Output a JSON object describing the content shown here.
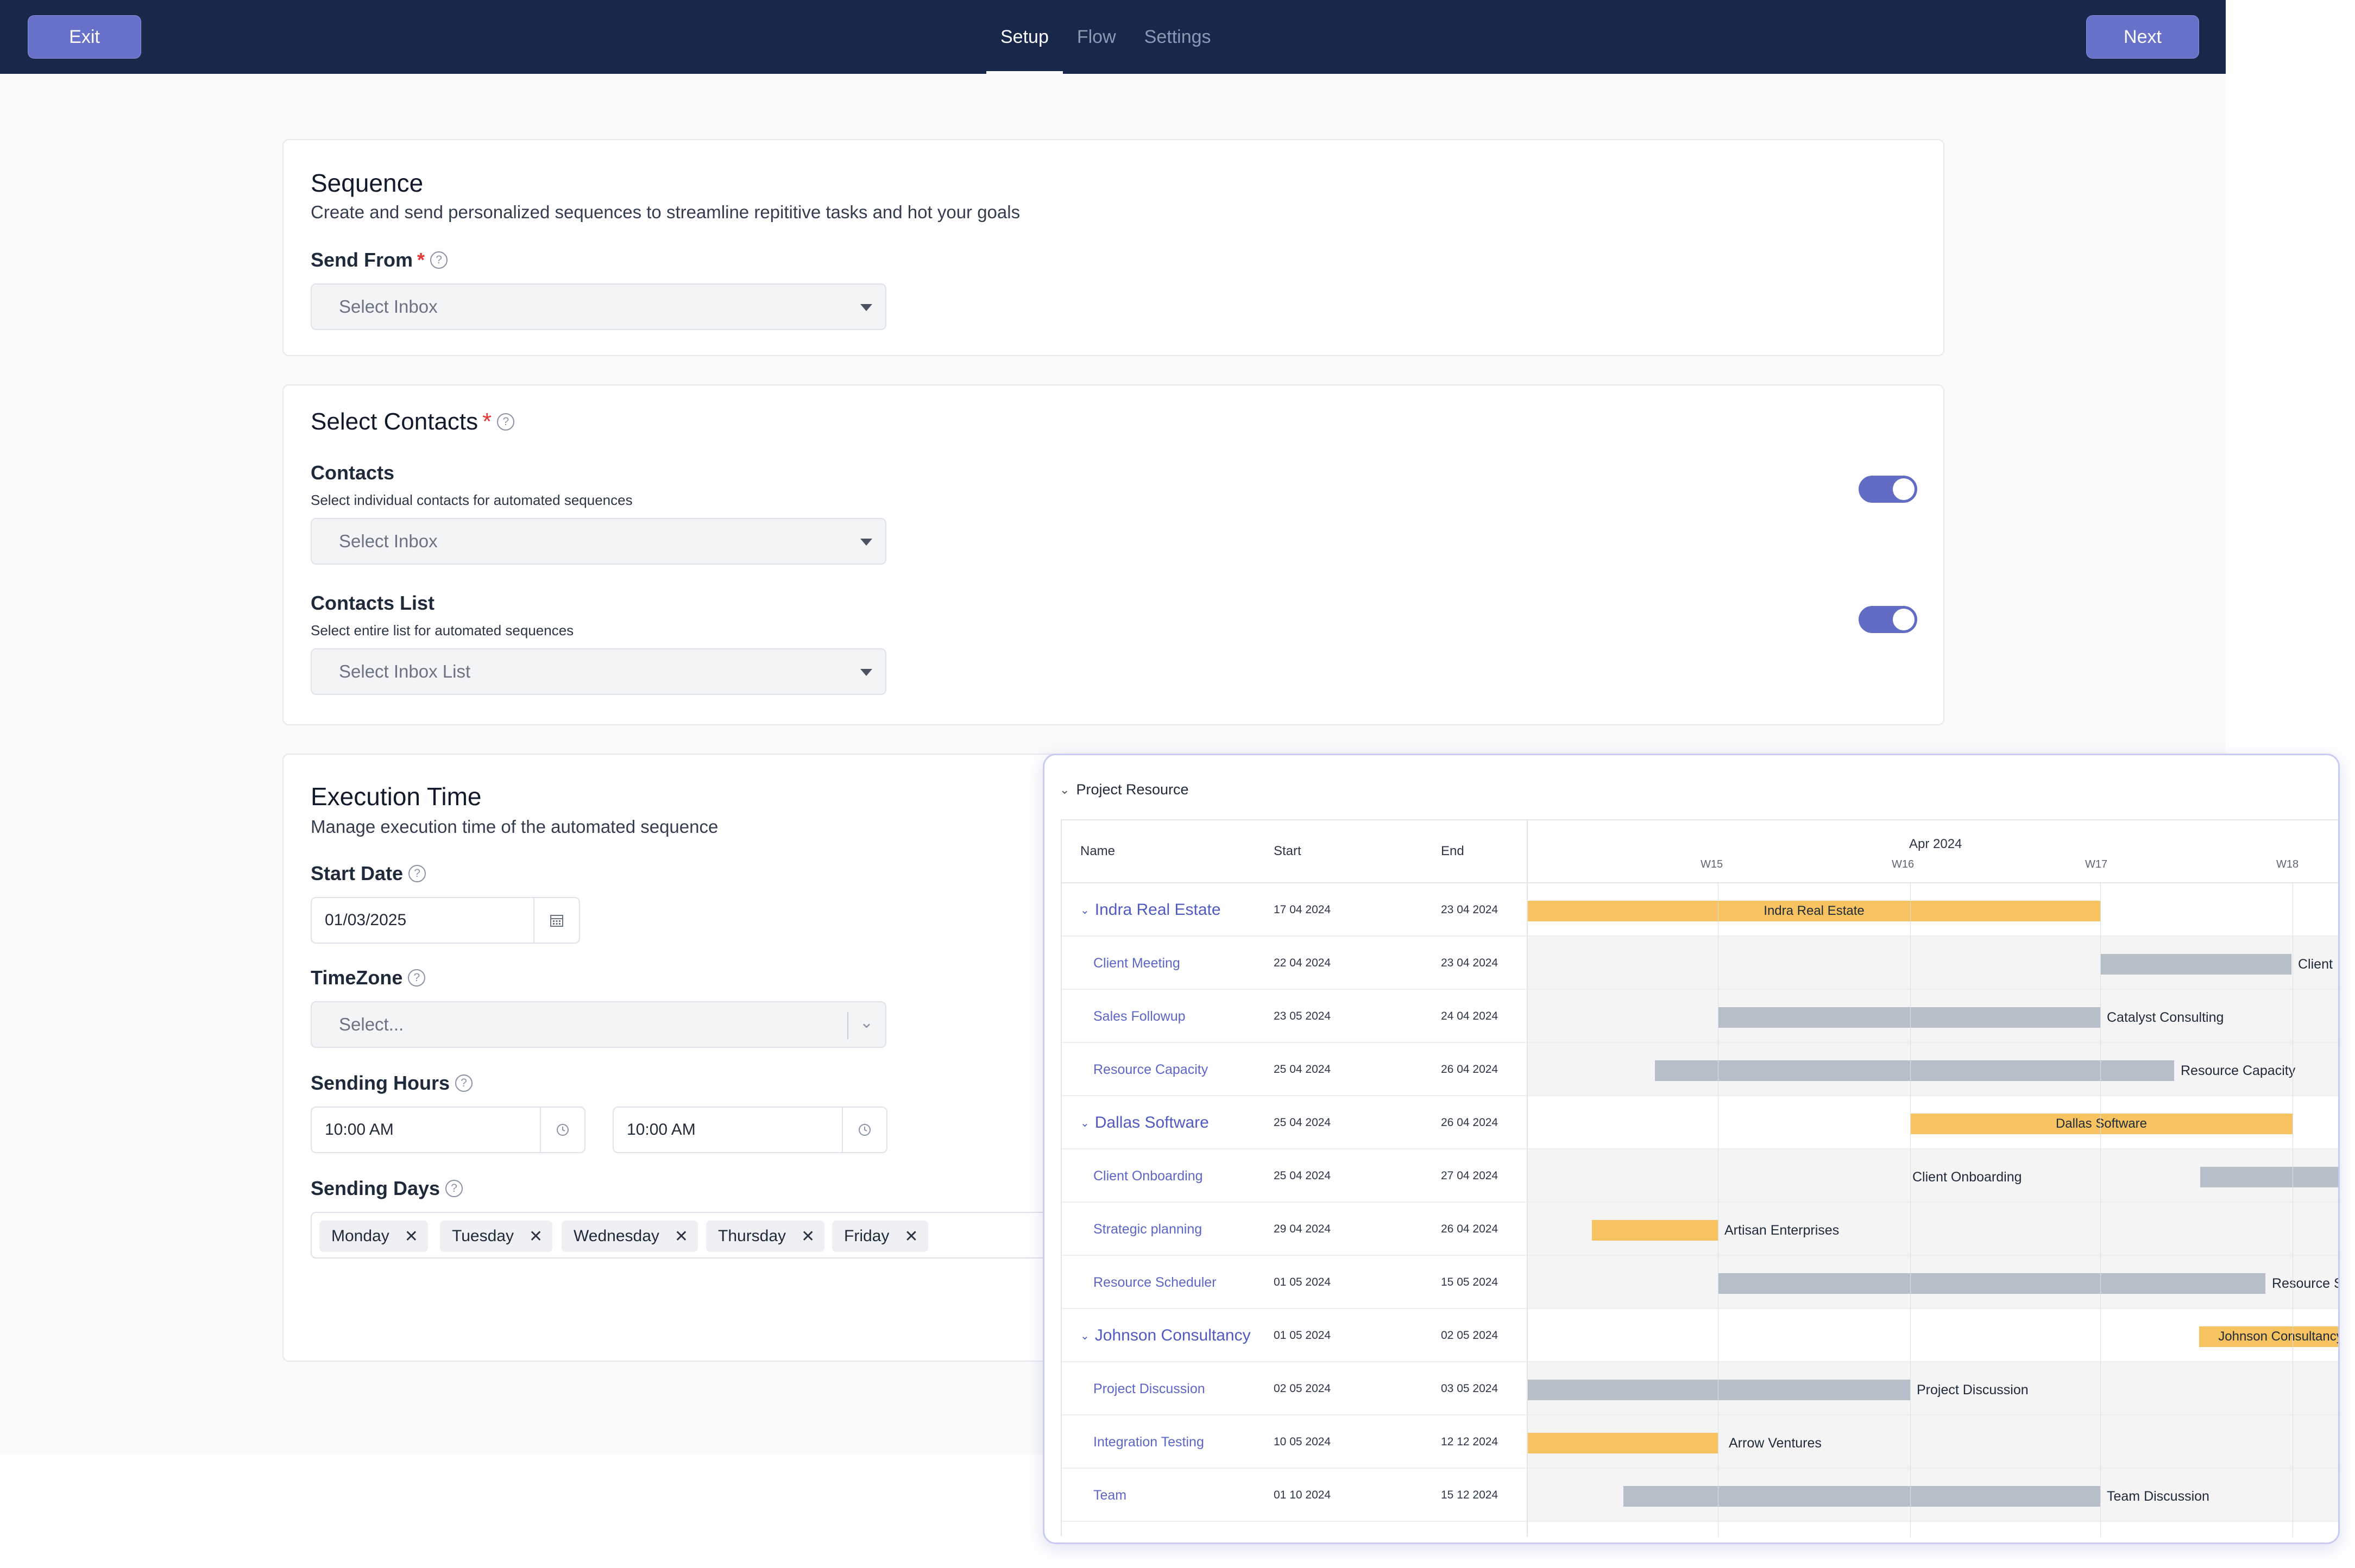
{
  "topbar": {
    "exit_label": "Exit",
    "next_label": "Next",
    "tabs": [
      {
        "label": "Setup",
        "active": true
      },
      {
        "label": "Flow",
        "active": false
      },
      {
        "label": "Settings",
        "active": false
      }
    ]
  },
  "sequence": {
    "title": "Sequence",
    "subtitle": "Create and send personalized sequences to streamline repititive tasks and hot your goals",
    "send_from_label": "Send From",
    "send_from_placeholder": "Select Inbox"
  },
  "contacts": {
    "title": "Select Contacts",
    "contacts_label": "Contacts",
    "contacts_hint": "Select individual contacts for automated sequences",
    "contacts_placeholder": "Select Inbox",
    "contacts_toggle_on": true,
    "list_label": "Contacts List",
    "list_hint": "Select entire list for automated sequences",
    "list_placeholder": "Select Inbox List",
    "list_toggle_on": true
  },
  "execution": {
    "title": "Execution Time",
    "subtitle": "Manage execution time of the automated sequence",
    "start_date_label": "Start Date",
    "start_date_value": "01/03/2025",
    "timezone_label": "TimeZone",
    "timezone_placeholder": "Select...",
    "sending_hours_label": "Sending Hours",
    "hour_from": "10:00 AM",
    "hour_to": "10:00 AM",
    "sending_days_label": "Sending Days",
    "days": [
      "Monday",
      "Tuesday",
      "Wednesday",
      "Thursday",
      "Friday"
    ]
  },
  "gantt": {
    "title": "Project Resource",
    "col_name": "Name",
    "col_start": "Start",
    "col_end": "End",
    "month": "Apr 2024",
    "weeks": [
      "W15",
      "W16",
      "W17",
      "W18"
    ],
    "rows": [
      {
        "name": "Indra Real Estate",
        "start": "17 04 2024",
        "end": "23 04 2024",
        "parent": true,
        "bar_label": "Indra Real Estate",
        "side_label": ""
      },
      {
        "name": "Client Meeting",
        "start": "22 04 2024",
        "end": "23 04 2024",
        "parent": false,
        "bar_label": "",
        "side_label": "Client"
      },
      {
        "name": "Sales Followup",
        "start": "23 05 2024",
        "end": "24 04 2024",
        "parent": false,
        "bar_label": "",
        "side_label": "Catalyst Consulting"
      },
      {
        "name": "Resource Capacity",
        "start": "25 04 2024",
        "end": "26 04 2024",
        "parent": false,
        "bar_label": "",
        "side_label": "Resource Capacity"
      },
      {
        "name": "Dallas Software",
        "start": "25 04 2024",
        "end": "26 04 2024",
        "parent": true,
        "bar_label": "Dallas Software",
        "side_label": ""
      },
      {
        "name": "Client Onboarding",
        "start": "25 04 2024",
        "end": "27 04 2024",
        "parent": false,
        "bar_label": "",
        "side_label": "Client Onboarding"
      },
      {
        "name": "Strategic planning",
        "start": "29 04 2024",
        "end": "26 04 2024",
        "parent": false,
        "bar_label": "",
        "side_label": "Artisan Enterprises"
      },
      {
        "name": "Resource Scheduler",
        "start": "01 05 2024",
        "end": "15 05 2024",
        "parent": false,
        "bar_label": "",
        "side_label": "Resource S"
      },
      {
        "name": "Johnson Consultancy",
        "start": "01 05 2024",
        "end": "02 05 2024",
        "parent": true,
        "bar_label": "Johnson Consultancy",
        "side_label": ""
      },
      {
        "name": "Project Discussion",
        "start": "02 05 2024",
        "end": "03 05 2024",
        "parent": false,
        "bar_label": "",
        "side_label": "Project Discussion"
      },
      {
        "name": "Integration Testing",
        "start": "10 05 2024",
        "end": "12 12 2024",
        "parent": false,
        "bar_label": "",
        "side_label": "Arrow Ventures"
      },
      {
        "name": "Team",
        "start": "01 10 2024",
        "end": "15 12 2024",
        "parent": false,
        "bar_label": "",
        "side_label": "Team Discussion"
      }
    ]
  },
  "colors": {
    "topbar": "#17284a",
    "accent": "#6771c9",
    "bar_parent": "#f7c360",
    "bar_child": "#b6bec9"
  }
}
